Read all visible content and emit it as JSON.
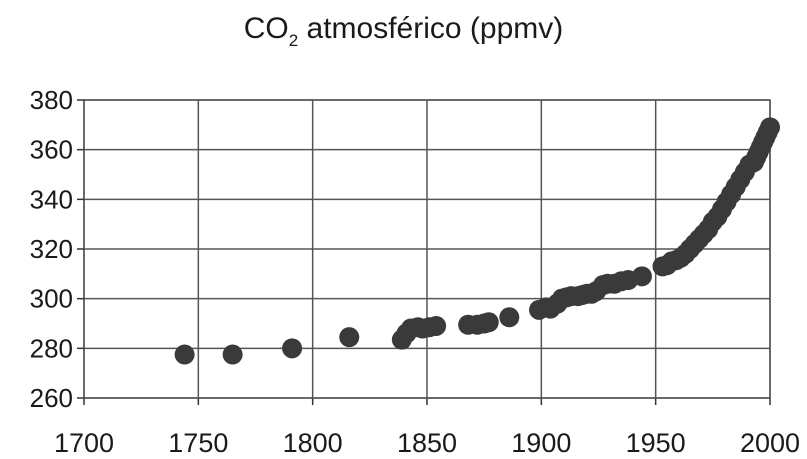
{
  "chart_data": {
    "type": "scatter",
    "title": {
      "prefix": "CO",
      "subscript": "2",
      "suffix": " atmosférico (ppmv)"
    },
    "xlabel": "",
    "ylabel": "",
    "xlim": [
      1700,
      2000
    ],
    "ylim": [
      260,
      380
    ],
    "xticks": [
      "1700",
      "1750",
      "1800",
      "1850",
      "1900",
      "1950",
      "2000"
    ],
    "yticks": [
      "260",
      "280",
      "300",
      "320",
      "340",
      "360",
      "380"
    ],
    "grid": true,
    "points": [
      [
        1744,
        277.5
      ],
      [
        1765,
        277.5
      ],
      [
        1791,
        280
      ],
      [
        1816,
        284.5
      ],
      [
        1839,
        283.5
      ],
      [
        1841,
        286
      ],
      [
        1843,
        288
      ],
      [
        1846,
        288.5
      ],
      [
        1848,
        288
      ],
      [
        1851,
        288.5
      ],
      [
        1854,
        289
      ],
      [
        1868,
        289.5
      ],
      [
        1872,
        289.5
      ],
      [
        1875,
        290
      ],
      [
        1877,
        290.5
      ],
      [
        1886,
        292.5
      ],
      [
        1899,
        295.5
      ],
      [
        1902,
        296.5
      ],
      [
        1904,
        296
      ],
      [
        1907,
        298
      ],
      [
        1909,
        300
      ],
      [
        1911,
        300.5
      ],
      [
        1913,
        301
      ],
      [
        1916,
        301
      ],
      [
        1918,
        301.5
      ],
      [
        1920,
        302
      ],
      [
        1922,
        302
      ],
      [
        1924,
        303
      ],
      [
        1927,
        305.5
      ],
      [
        1929,
        306
      ],
      [
        1932,
        306
      ],
      [
        1935,
        307
      ],
      [
        1938,
        307.5
      ],
      [
        1944,
        309
      ],
      [
        1953,
        313
      ],
      [
        1955,
        313.5
      ],
      [
        1957,
        315
      ],
      [
        1959,
        315.5
      ],
      [
        1961,
        316.5
      ],
      [
        1963,
        318
      ],
      [
        1965,
        320
      ],
      [
        1967,
        322
      ],
      [
        1969,
        324
      ],
      [
        1971,
        326
      ],
      [
        1973,
        328
      ],
      [
        1975,
        331
      ],
      [
        1977,
        333
      ],
      [
        1979,
        336
      ],
      [
        1981,
        339
      ],
      [
        1983,
        342
      ],
      [
        1985,
        345
      ],
      [
        1987,
        348
      ],
      [
        1989,
        351
      ],
      [
        1991,
        354
      ],
      [
        1993,
        355
      ],
      [
        1994,
        357
      ],
      [
        1995,
        359
      ],
      [
        1996,
        361
      ],
      [
        1997,
        363
      ],
      [
        1998,
        365
      ],
      [
        1999,
        367
      ],
      [
        2000,
        369
      ]
    ],
    "colors": {
      "point": "#3a3a3a",
      "grid": "#555555",
      "axis": "#333333"
    }
  }
}
